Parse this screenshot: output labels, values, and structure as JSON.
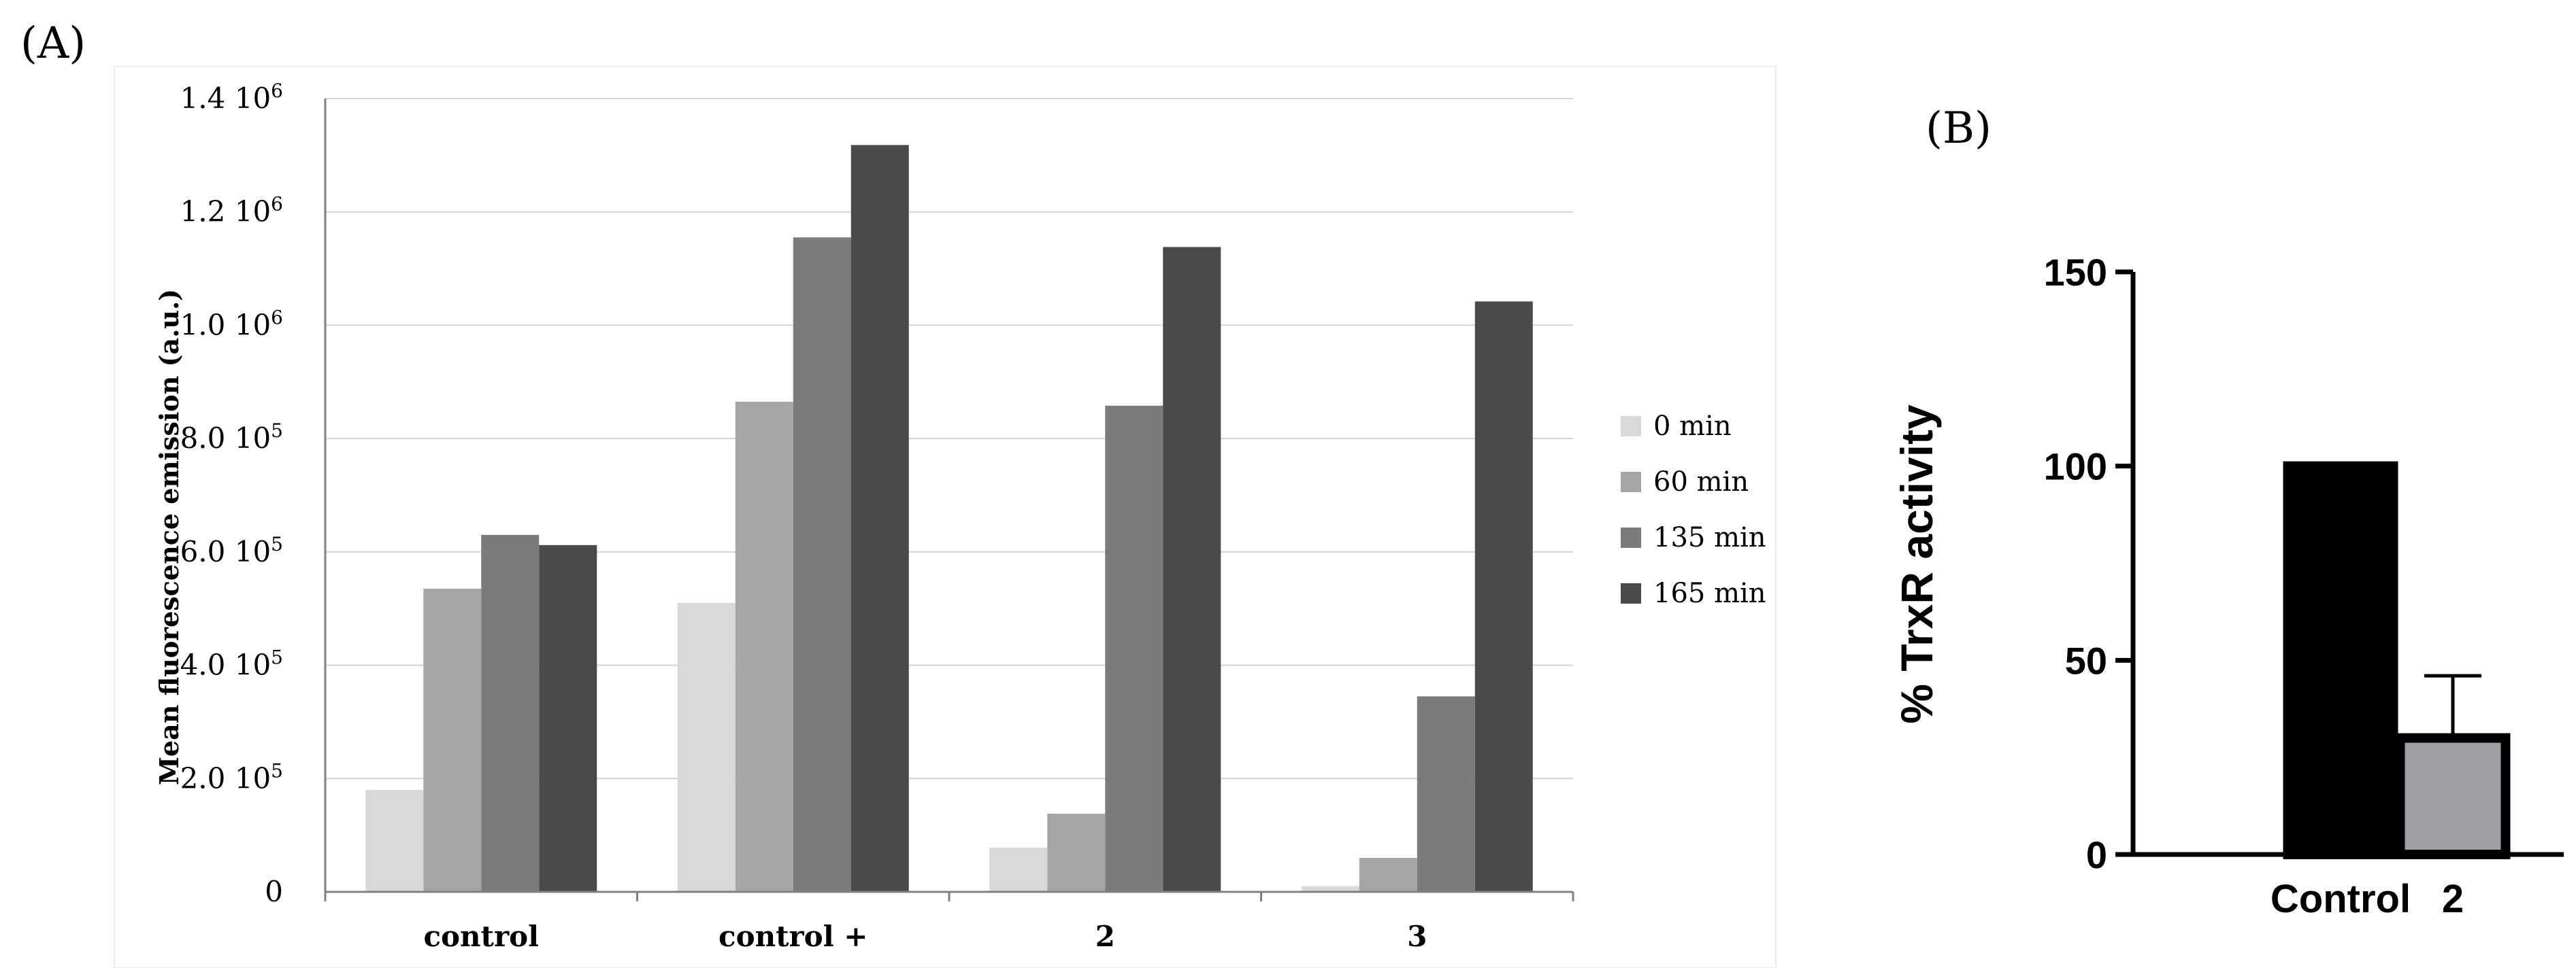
{
  "chart_data": [
    {
      "panel_label": "(A)",
      "type": "bar",
      "ylabel": "Mean fluorescence emission (a.u.)",
      "ylim": [
        0,
        1400000
      ],
      "yticks": [
        {
          "value": 0,
          "mantissa": "0",
          "exp": ""
        },
        {
          "value": 200000,
          "mantissa": "2.0 10",
          "exp": "5"
        },
        {
          "value": 400000,
          "mantissa": "4.0 10",
          "exp": "5"
        },
        {
          "value": 600000,
          "mantissa": "6.0 10",
          "exp": "5"
        },
        {
          "value": 800000,
          "mantissa": "8.0 10",
          "exp": "5"
        },
        {
          "value": 1000000,
          "mantissa": "1.0 10",
          "exp": "6"
        },
        {
          "value": 1200000,
          "mantissa": "1.2 10",
          "exp": "6"
        },
        {
          "value": 1400000,
          "mantissa": "1.4 10",
          "exp": "6"
        }
      ],
      "grid": true,
      "legend_position": "right",
      "categories": [
        "control",
        "control +",
        "2",
        "3"
      ],
      "series": [
        {
          "name": "0 min",
          "color": "#d9d9d9",
          "values": [
            180000,
            510000,
            78000,
            10000
          ]
        },
        {
          "name": "60 min",
          "color": "#a6a6a6",
          "values": [
            535000,
            865000,
            138000,
            60000
          ]
        },
        {
          "name": "135 min",
          "color": "#7b7b7b",
          "values": [
            630000,
            1155000,
            858000,
            345000
          ]
        },
        {
          "name": "165 min",
          "color": "#4a4a4a",
          "values": [
            612000,
            1318000,
            1138000,
            1042000
          ]
        }
      ]
    },
    {
      "panel_label": "(B)",
      "type": "bar",
      "ylabel": "% TrxR activity",
      "ylim": [
        0,
        150
      ],
      "yticks": [
        0,
        50,
        100,
        150
      ],
      "grid": false,
      "categories": [
        "Control",
        "2"
      ],
      "values": [
        100,
        30
      ],
      "errors": [
        0,
        16
      ],
      "colors": [
        "#000000",
        "#a0a0a4"
      ]
    }
  ]
}
